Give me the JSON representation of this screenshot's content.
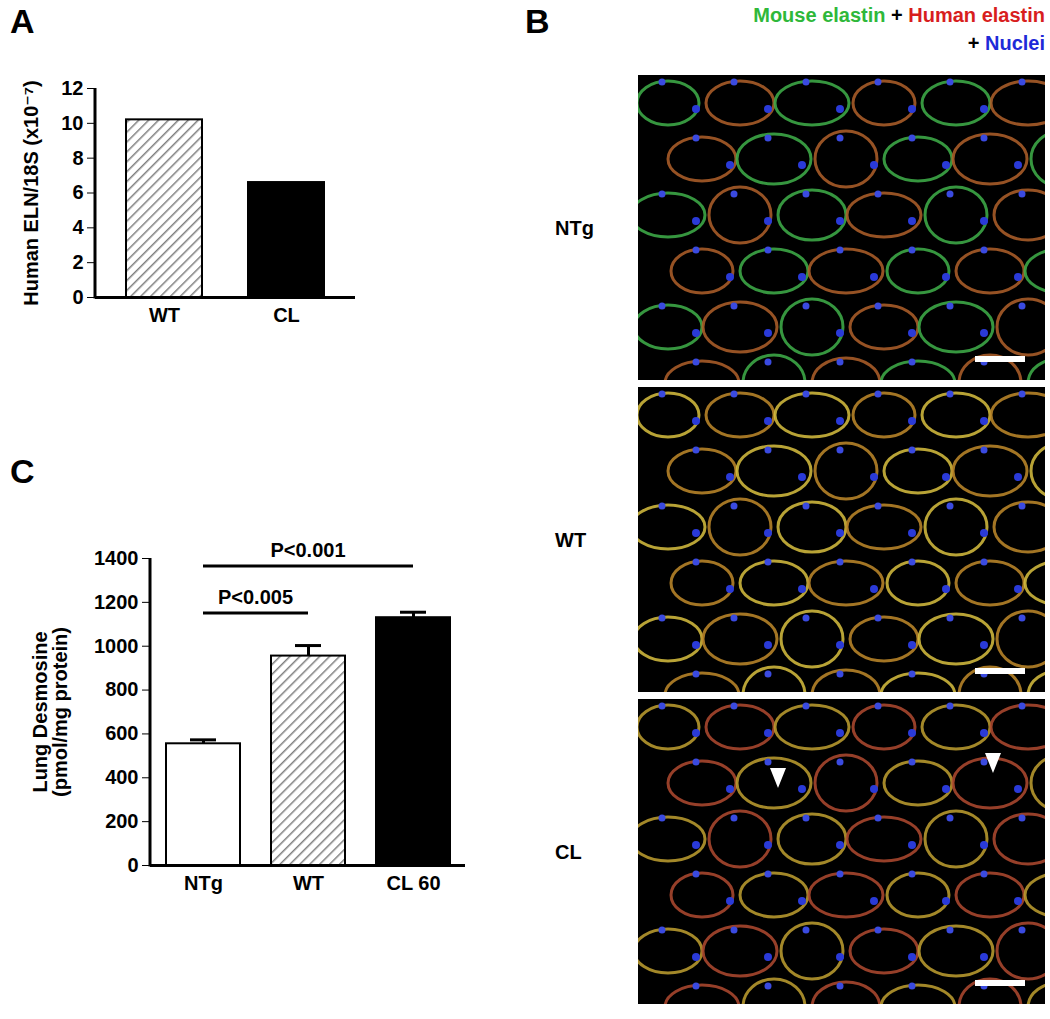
{
  "chart_data": [
    {
      "panel": "A",
      "type": "bar",
      "y_label": "Human ELN/18S (x10⁻⁷)",
      "categories": [
        "WT",
        "CL"
      ],
      "values": [
        10.2,
        6.6
      ],
      "colors": [
        "#808080",
        "#000000"
      ],
      "ylim": [
        0,
        12
      ],
      "yticks": [
        0,
        2,
        4,
        6,
        8,
        10,
        12
      ]
    },
    {
      "panel": "C",
      "type": "bar",
      "y_label": "Lung Desmosine\n(pmol/mg protein)",
      "categories": [
        "NTg",
        "WT",
        "CL 60"
      ],
      "values": [
        555,
        955,
        1130
      ],
      "errors": [
        18,
        48,
        25
      ],
      "colors": [
        "#ffffff",
        "#808080",
        "#000000"
      ],
      "ylim": [
        0,
        1400
      ],
      "yticks": [
        0,
        200,
        400,
        600,
        800,
        1000,
        1200,
        1400
      ],
      "annotations": [
        {
          "text": "P<0.005",
          "from": "NTg",
          "to": "WT"
        },
        {
          "text": "P<0.001",
          "from": "NTg",
          "to": "CL 60"
        }
      ]
    }
  ],
  "image_panel": {
    "panel": "B",
    "legend": [
      [
        {
          "text": "Mouse elastin",
          "color": "#2fb83a"
        },
        {
          "text": " + ",
          "color": "#000000"
        },
        {
          "text": "Human elastin",
          "color": "#d81e1e"
        }
      ],
      [
        {
          "text": "+ ",
          "color": "#000000"
        },
        {
          "text": "Nuclei",
          "color": "#1e2ad8"
        }
      ]
    ],
    "images": [
      "NTg",
      "WT",
      "CL"
    ]
  }
}
